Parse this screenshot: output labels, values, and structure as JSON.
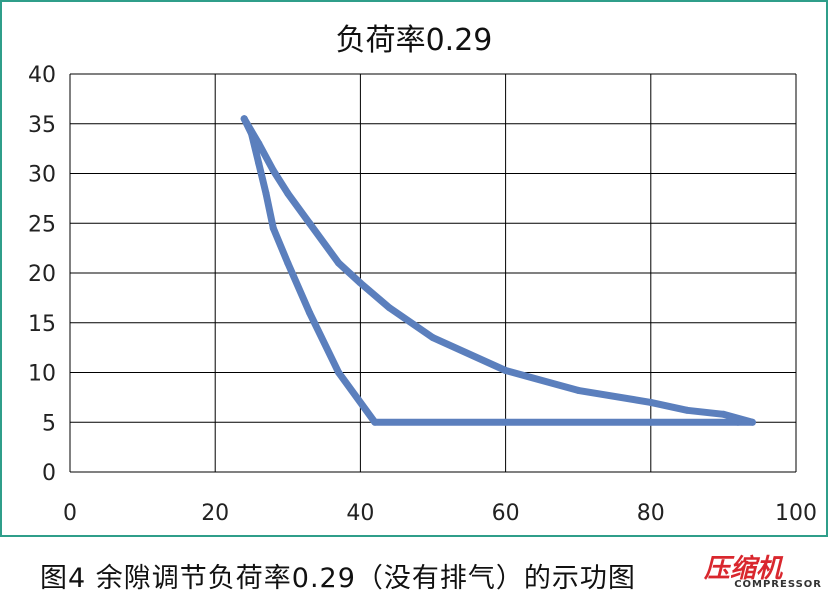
{
  "chart_data": {
    "type": "line",
    "title": "负荷率0.29",
    "xlabel": "",
    "ylabel": "",
    "xlim": [
      0,
      100
    ],
    "ylim": [
      0,
      40
    ],
    "xticks": [
      0,
      20,
      40,
      60,
      80,
      100
    ],
    "yticks": [
      0,
      5,
      10,
      15,
      20,
      25,
      30,
      35,
      40
    ],
    "grid": true,
    "series": [
      {
        "color": "#5b7fbd",
        "x": [
          24,
          26,
          28,
          30,
          33,
          37,
          40,
          44,
          50,
          60,
          70,
          80,
          85,
          90,
          94,
          92,
          80,
          60,
          42,
          37,
          33,
          30,
          28,
          27,
          26,
          25,
          24
        ],
        "y": [
          35.5,
          33,
          30.3,
          28,
          25,
          21,
          19,
          16.5,
          13.5,
          10.2,
          8.2,
          7,
          6.2,
          5.8,
          5,
          5,
          5,
          5,
          5,
          10,
          16,
          21,
          24.5,
          28,
          31,
          34,
          35.5
        ]
      }
    ]
  },
  "caption": "图4 余隙调节负荷率0.29（没有排气）的示功图",
  "watermark": {
    "cn": "压缩机",
    "en": "COMPRESSOR"
  }
}
